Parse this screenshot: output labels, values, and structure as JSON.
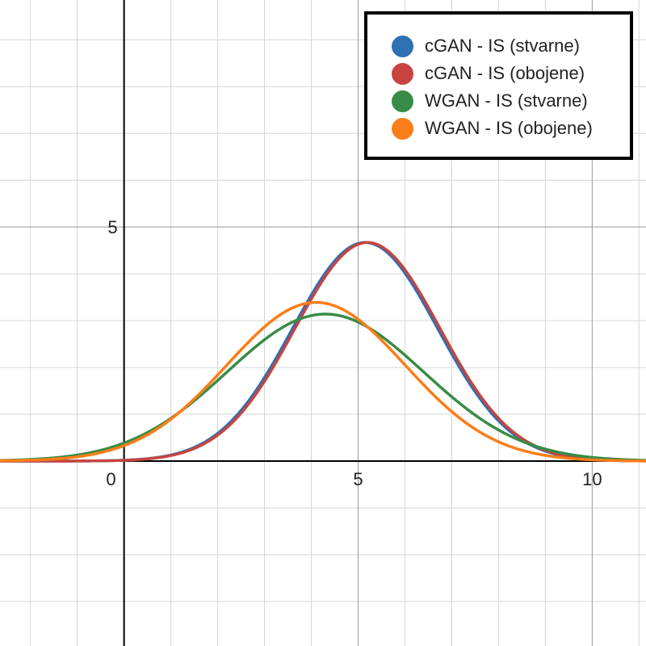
{
  "chart_data": {
    "type": "line",
    "title": "",
    "xlabel": "",
    "ylabel": "",
    "xlim": [
      -2.65,
      11.15
    ],
    "ylim": [
      -3.95,
      9.85
    ],
    "grid": true,
    "x_ticks": [
      0,
      5,
      10
    ],
    "y_ticks": [
      5
    ],
    "x_tick_labels": [
      "0",
      "5",
      "10"
    ],
    "y_tick_labels": [
      "5"
    ],
    "legend_position": "top-right",
    "series": [
      {
        "name": "cGAN - IS (stvarne)",
        "color": "#2d70b3",
        "curve": "gaussian",
        "mean": 5.15,
        "sd": 1.55,
        "peak": 4.67,
        "x_samples": [
          0,
          1,
          2,
          3,
          4,
          5,
          6,
          7,
          8,
          9,
          10
        ],
        "y_samples": [
          0.02,
          0.13,
          0.59,
          1.79,
          3.53,
          4.65,
          4.11,
          2.41,
          0.96,
          0.25,
          0.04
        ]
      },
      {
        "name": "cGAN - IS (obojene)",
        "color": "#c74440",
        "curve": "gaussian",
        "mean": 5.2,
        "sd": 1.55,
        "peak": 4.67,
        "x_samples": [
          0,
          1,
          2,
          3,
          4,
          5,
          6,
          7,
          8,
          9,
          10
        ],
        "y_samples": [
          0.02,
          0.12,
          0.55,
          1.71,
          3.45,
          4.63,
          4.18,
          2.5,
          1.0,
          0.28,
          0.05
        ]
      },
      {
        "name": "WGAN - IS (stvarne)",
        "color": "#388c46",
        "curve": "gaussian",
        "mean": 4.3,
        "sd": 2.1,
        "peak": 3.14,
        "x_samples": [
          0,
          1,
          2,
          3,
          4,
          5,
          6,
          7,
          8,
          9,
          10
        ],
        "y_samples": [
          0.4,
          0.9,
          1.72,
          2.59,
          3.11,
          3.07,
          2.42,
          1.52,
          0.76,
          0.3,
          0.09
        ]
      },
      {
        "name": "WGAN - IS (obojene)",
        "color": "#fa7e19",
        "curve": "gaussian",
        "mean": 4.1,
        "sd": 1.9,
        "peak": 3.39,
        "x_samples": [
          0,
          1,
          2,
          3,
          4,
          5,
          6,
          7,
          8,
          9,
          10
        ],
        "y_samples": [
          0.33,
          0.89,
          1.86,
          2.87,
          3.35,
          3.04,
          2.06,
          1.06,
          0.41,
          0.12,
          0.02
        ]
      }
    ]
  }
}
